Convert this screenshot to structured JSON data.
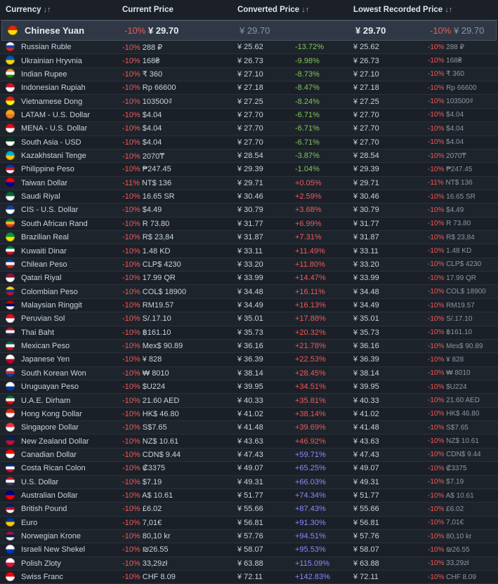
{
  "header": {
    "currency": "Currency",
    "current_price": "Current Price",
    "converted_price": "Converted Price",
    "lowest_price": "Lowest Recorded Price",
    "sort_glyph": "↓↑"
  },
  "featured": {
    "name": "Chinese Yuan",
    "flag": [
      "#de2910",
      "#ffde00"
    ],
    "disc": "-10%",
    "price": "¥ 29.70",
    "converted": "¥ 29.70",
    "lowest": "¥ 29.70",
    "low_disc": "-10%",
    "low_price": "¥ 29.70"
  },
  "rows": [
    {
      "name": "Russian Ruble",
      "flag": [
        "#ffffff",
        "#1c3faa",
        "#d52b1e"
      ],
      "disc": "-10%",
      "price": "288 ₽",
      "converted": "¥ 25.62",
      "diff": "-13.72%",
      "lowest": "¥ 25.62",
      "low_disc": "-10%",
      "low_price": "288 ₽"
    },
    {
      "name": "Ukrainian Hryvnia",
      "flag": [
        "#0057b7",
        "#ffd700"
      ],
      "disc": "-10%",
      "price": "168₴",
      "converted": "¥ 26.73",
      "diff": "-9.98%",
      "lowest": "¥ 26.73",
      "low_disc": "-10%",
      "low_price": "168₴"
    },
    {
      "name": "Indian Rupee",
      "flag": [
        "#ff9933",
        "#ffffff",
        "#138808"
      ],
      "disc": "-10%",
      "price": "₹ 360",
      "converted": "¥ 27.10",
      "diff": "-8.73%",
      "lowest": "¥ 27.10",
      "low_disc": "-10%",
      "low_price": "₹ 360"
    },
    {
      "name": "Indonesian Rupiah",
      "flag": [
        "#ce1126",
        "#ffffff"
      ],
      "disc": "-10%",
      "price": "Rp 66600",
      "converted": "¥ 27.18",
      "diff": "-8.47%",
      "lowest": "¥ 27.18",
      "low_disc": "-10%",
      "low_price": "Rp 66600"
    },
    {
      "name": "Vietnamese Dong",
      "flag": [
        "#da251d",
        "#ffff00"
      ],
      "disc": "-10%",
      "price": "103500₫",
      "converted": "¥ 27.25",
      "diff": "-8.24%",
      "lowest": "¥ 27.25",
      "low_disc": "-10%",
      "low_price": "103500₫"
    },
    {
      "name": "LATAM - U.S. Dollar",
      "flag": [
        "#f5a623",
        "#f07a1a"
      ],
      "disc": "-10%",
      "price": "$4.04",
      "converted": "¥ 27.70",
      "diff": "-6.71%",
      "lowest": "¥ 27.70",
      "low_disc": "-10%",
      "low_price": "$4.04"
    },
    {
      "name": "MENA - U.S. Dollar",
      "flag": [
        "#e30a17",
        "#ffffff"
      ],
      "disc": "-10%",
      "price": "$4.04",
      "converted": "¥ 27.70",
      "diff": "-6.71%",
      "lowest": "¥ 27.70",
      "low_disc": "-10%",
      "low_price": "$4.04"
    },
    {
      "name": "South Asia - USD",
      "flag": [
        "#01411c",
        "#ffffff"
      ],
      "disc": "-10%",
      "price": "$4.04",
      "converted": "¥ 27.70",
      "diff": "-6.71%",
      "lowest": "¥ 27.70",
      "low_disc": "-10%",
      "low_price": "$4.04"
    },
    {
      "name": "Kazakhstani Tenge",
      "flag": [
        "#00afca",
        "#fec50c"
      ],
      "disc": "-10%",
      "price": "2070₸",
      "converted": "¥ 28.54",
      "diff": "-3.87%",
      "lowest": "¥ 28.54",
      "low_disc": "-10%",
      "low_price": "2070₸"
    },
    {
      "name": "Philippine Peso",
      "flag": [
        "#0038a8",
        "#ce1126",
        "#ffffff"
      ],
      "disc": "-10%",
      "price": "₱247.45",
      "converted": "¥ 29.39",
      "diff": "-1.04%",
      "lowest": "¥ 29.39",
      "low_disc": "-10%",
      "low_price": "₱247.45"
    },
    {
      "name": "Taiwan Dollar",
      "flag": [
        "#fe0000",
        "#000095"
      ],
      "disc": "-11%",
      "price": "NT$ 136",
      "converted": "¥ 29.71",
      "diff": "+0.05%",
      "lowest": "¥ 29.71",
      "low_disc": "-11%",
      "low_price": "NT$ 136"
    },
    {
      "name": "Saudi Riyal",
      "flag": [
        "#006c35",
        "#ffffff"
      ],
      "disc": "-10%",
      "price": "16.65 SR",
      "converted": "¥ 30.46",
      "diff": "+2.59%",
      "lowest": "¥ 30.46",
      "low_disc": "-10%",
      "low_price": "16.65 SR"
    },
    {
      "name": "CIS - U.S. Dollar",
      "flag": [
        "#1a3e8f",
        "#ffffff"
      ],
      "disc": "-10%",
      "price": "$4.49",
      "converted": "¥ 30.79",
      "diff": "+3.68%",
      "lowest": "¥ 30.79",
      "low_disc": "-10%",
      "low_price": "$4.49"
    },
    {
      "name": "South African Rand",
      "flag": [
        "#007a4d",
        "#ffb612",
        "#de3831"
      ],
      "disc": "-10%",
      "price": "R 73.80",
      "converted": "¥ 31.77",
      "diff": "+6.99%",
      "lowest": "¥ 31.77",
      "low_disc": "-10%",
      "low_price": "R 73.80"
    },
    {
      "name": "Brazilian Real",
      "flag": [
        "#009c3b",
        "#ffdf00"
      ],
      "disc": "-10%",
      "price": "R$ 23,84",
      "converted": "¥ 31.87",
      "diff": "+7.31%",
      "lowest": "¥ 31.87",
      "low_disc": "-10%",
      "low_price": "R$ 23,84"
    },
    {
      "name": "Kuwaiti Dinar",
      "flag": [
        "#007a3d",
        "#ffffff",
        "#ce1126"
      ],
      "disc": "-10%",
      "price": "1.48 KD",
      "converted": "¥ 33.11",
      "diff": "+11.49%",
      "lowest": "¥ 33.11",
      "low_disc": "-10%",
      "low_price": "1.48 KD"
    },
    {
      "name": "Chilean Peso",
      "flag": [
        "#0039a6",
        "#ffffff",
        "#d52b1e"
      ],
      "disc": "-10%",
      "price": "CLP$ 4230",
      "converted": "¥ 33.20",
      "diff": "+11.80%",
      "lowest": "¥ 33.20",
      "low_disc": "-10%",
      "low_price": "CLP$ 4230"
    },
    {
      "name": "Qatari Riyal",
      "flag": [
        "#8a1538",
        "#ffffff"
      ],
      "disc": "-10%",
      "price": "17.99 QR",
      "converted": "¥ 33.99",
      "diff": "+14.47%",
      "lowest": "¥ 33.99",
      "low_disc": "-10%",
      "low_price": "17.99 QR"
    },
    {
      "name": "Colombian Peso",
      "flag": [
        "#fcd116",
        "#003893",
        "#ce1126"
      ],
      "disc": "-10%",
      "price": "COL$ 18900",
      "converted": "¥ 34.48",
      "diff": "+16.11%",
      "lowest": "¥ 34.48",
      "low_disc": "-10%",
      "low_price": "COL$ 18900"
    },
    {
      "name": "Malaysian Ringgit",
      "flag": [
        "#cc0001",
        "#010066",
        "#ffffff"
      ],
      "disc": "-10%",
      "price": "RM19.57",
      "converted": "¥ 34.49",
      "diff": "+16.13%",
      "lowest": "¥ 34.49",
      "low_disc": "-10%",
      "low_price": "RM19.57"
    },
    {
      "name": "Peruvian Sol",
      "flag": [
        "#d91023",
        "#ffffff"
      ],
      "disc": "-10%",
      "price": "S/.17.10",
      "converted": "¥ 35.01",
      "diff": "+17.88%",
      "lowest": "¥ 35.01",
      "low_disc": "-10%",
      "low_price": "S/.17.10"
    },
    {
      "name": "Thai Baht",
      "flag": [
        "#a51931",
        "#ffffff",
        "#2d2a4a"
      ],
      "disc": "-10%",
      "price": "฿161.10",
      "converted": "¥ 35.73",
      "diff": "+20.32%",
      "lowest": "¥ 35.73",
      "low_disc": "-10%",
      "low_price": "฿161.10"
    },
    {
      "name": "Mexican Peso",
      "flag": [
        "#006847",
        "#ffffff",
        "#ce1126"
      ],
      "disc": "-10%",
      "price": "Mex$ 90.89",
      "converted": "¥ 36.16",
      "diff": "+21.78%",
      "lowest": "¥ 36.16",
      "low_disc": "-10%",
      "low_price": "Mex$ 90.89"
    },
    {
      "name": "Japanese Yen",
      "flag": [
        "#ffffff",
        "#bc002d"
      ],
      "disc": "-10%",
      "price": "¥ 828",
      "converted": "¥ 36.39",
      "diff": "+22.53%",
      "lowest": "¥ 36.39",
      "low_disc": "-10%",
      "low_price": "¥ 828"
    },
    {
      "name": "South Korean Won",
      "flag": [
        "#ffffff",
        "#cd2e3a",
        "#0047a0"
      ],
      "disc": "-10%",
      "price": "₩ 8010",
      "converted": "¥ 38.14",
      "diff": "+28.45%",
      "lowest": "¥ 38.14",
      "low_disc": "-10%",
      "low_price": "₩ 8010"
    },
    {
      "name": "Uruguayan Peso",
      "flag": [
        "#ffffff",
        "#0038a8"
      ],
      "disc": "-10%",
      "price": "$U224",
      "converted": "¥ 39.95",
      "diff": "+34.51%",
      "lowest": "¥ 39.95",
      "low_disc": "-10%",
      "low_price": "$U224"
    },
    {
      "name": "U.A.E. Dirham",
      "flag": [
        "#00732f",
        "#ffffff",
        "#ff0000"
      ],
      "disc": "-10%",
      "price": "21.60 AED",
      "converted": "¥ 40.33",
      "diff": "+35.81%",
      "lowest": "¥ 40.33",
      "low_disc": "-10%",
      "low_price": "21.60 AED"
    },
    {
      "name": "Hong Kong Dollar",
      "flag": [
        "#de2910",
        "#ffffff"
      ],
      "disc": "-10%",
      "price": "HK$ 46.80",
      "converted": "¥ 41.02",
      "diff": "+38.14%",
      "lowest": "¥ 41.02",
      "low_disc": "-10%",
      "low_price": "HK$ 46.80"
    },
    {
      "name": "Singapore Dollar",
      "flag": [
        "#ef3340",
        "#ffffff"
      ],
      "disc": "-10%",
      "price": "S$7.65",
      "converted": "¥ 41.48",
      "diff": "+39.69%",
      "lowest": "¥ 41.48",
      "low_disc": "-10%",
      "low_price": "S$7.65"
    },
    {
      "name": "New Zealand Dollar",
      "flag": [
        "#012169",
        "#c8102e"
      ],
      "disc": "-10%",
      "price": "NZ$ 10.61",
      "converted": "¥ 43.63",
      "diff": "+46.92%",
      "lowest": "¥ 43.63",
      "low_disc": "-10%",
      "low_price": "NZ$ 10.61"
    },
    {
      "name": "Canadian Dollar",
      "flag": [
        "#ff0000",
        "#ffffff"
      ],
      "disc": "-10%",
      "price": "CDN$ 9.44",
      "converted": "¥ 47.43",
      "diff": "+59.71%",
      "lowest": "¥ 47.43",
      "low_disc": "-10%",
      "low_price": "CDN$ 9.44"
    },
    {
      "name": "Costa Rican Colon",
      "flag": [
        "#002b7f",
        "#ffffff",
        "#ce1126"
      ],
      "disc": "-10%",
      "price": "₡3375",
      "converted": "¥ 49.07",
      "diff": "+65.25%",
      "lowest": "¥ 49.07",
      "low_disc": "-10%",
      "low_price": "₡3375"
    },
    {
      "name": "U.S. Dollar",
      "flag": [
        "#b22234",
        "#ffffff",
        "#3c3b6e"
      ],
      "disc": "-10%",
      "price": "$7.19",
      "converted": "¥ 49.31",
      "diff": "+66.03%",
      "lowest": "¥ 49.31",
      "low_disc": "-10%",
      "low_price": "$7.19"
    },
    {
      "name": "Australian Dollar",
      "flag": [
        "#00008b",
        "#ff0000"
      ],
      "disc": "-10%",
      "price": "A$ 10.61",
      "converted": "¥ 51.77",
      "diff": "+74.34%",
      "lowest": "¥ 51.77",
      "low_disc": "-10%",
      "low_price": "A$ 10.61"
    },
    {
      "name": "British Pound",
      "flag": [
        "#012169",
        "#c8102e",
        "#ffffff"
      ],
      "disc": "-10%",
      "price": "£6.02",
      "converted": "¥ 55.66",
      "diff": "+87.43%",
      "lowest": "¥ 55.66",
      "low_disc": "-10%",
      "low_price": "£6.02"
    },
    {
      "name": "Euro",
      "flag": [
        "#003399",
        "#ffcc00"
      ],
      "disc": "-10%",
      "price": "7,01€",
      "converted": "¥ 56.81",
      "diff": "+91.30%",
      "lowest": "¥ 56.81",
      "low_disc": "-10%",
      "low_price": "7,01€"
    },
    {
      "name": "Norwegian Krone",
      "flag": [
        "#ba0c2f",
        "#00205b",
        "#ffffff"
      ],
      "disc": "-10%",
      "price": "80,10 kr",
      "converted": "¥ 57.76",
      "diff": "+94.51%",
      "lowest": "¥ 57.76",
      "low_disc": "-10%",
      "low_price": "80,10 kr"
    },
    {
      "name": "Israeli New Shekel",
      "flag": [
        "#ffffff",
        "#0038b8"
      ],
      "disc": "-10%",
      "price": "₪26.55",
      "converted": "¥ 58.07",
      "diff": "+95.53%",
      "lowest": "¥ 58.07",
      "low_disc": "-10%",
      "low_price": "₪26.55"
    },
    {
      "name": "Polish Zloty",
      "flag": [
        "#ffffff",
        "#dc143c"
      ],
      "disc": "-10%",
      "price": "33,29zł",
      "converted": "¥ 63.88",
      "diff": "+115.09%",
      "lowest": "¥ 63.88",
      "low_disc": "-10%",
      "low_price": "33,29zł"
    },
    {
      "name": "Swiss Franc",
      "flag": [
        "#ff0000",
        "#ffffff"
      ],
      "disc": "-10%",
      "price": "CHF 8.09",
      "converted": "¥ 72.11",
      "diff": "+142.83%",
      "lowest": "¥ 72.11",
      "low_disc": "-10%",
      "low_price": "CHF 8.09"
    }
  ]
}
